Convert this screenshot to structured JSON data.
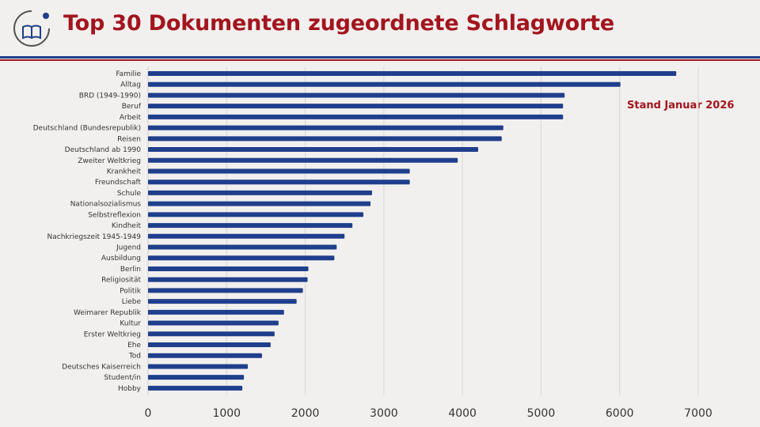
{
  "header": {
    "title": "Top 30 Dokumenten zugeordnete Schlagworte",
    "logo_icon": "book-circle-icon",
    "accent_red": "#a3151e",
    "accent_blue": "#1f3f8c"
  },
  "chart_data": {
    "type": "bar",
    "orientation": "horizontal",
    "title": "Top 30 Dokumenten zugeordnete Schlagworte",
    "annotation": "Stand Januar 2026",
    "xlabel": "",
    "ylabel": "",
    "xlim": [
      0,
      7000
    ],
    "xticks": [
      0,
      1000,
      2000,
      3000,
      4000,
      5000,
      6000,
      7000
    ],
    "grid": true,
    "bar_color": "#1f3f8c",
    "categories": [
      "Familie",
      "Alltag",
      "BRD (1949-1990)",
      "Beruf",
      "Arbeit",
      "Deutschland (Bundesrepublik)",
      "Reisen",
      "Deutschland ab 1990",
      "Zweiter Weltkrieg",
      "Krankheit",
      "Freundschaft",
      "Schule",
      "Nationalsozialismus",
      "Selbstreflexion",
      "Kindheit",
      "Nachkriegszeit 1945-1949",
      "Jugend",
      "Ausbildung",
      "Berlin",
      "Religiosität",
      "Politik",
      "Liebe",
      "Weimarer Republik",
      "Kultur",
      "Erster Weltkrieg",
      "Ehe",
      "Tod",
      "Deutsches Kaiserreich",
      "Student/in",
      "Hobby"
    ],
    "values": [
      6720,
      6010,
      5300,
      5280,
      5280,
      4520,
      4500,
      4200,
      3940,
      3330,
      3330,
      2850,
      2830,
      2740,
      2600,
      2500,
      2400,
      2370,
      2040,
      2030,
      1970,
      1890,
      1730,
      1660,
      1610,
      1560,
      1450,
      1270,
      1220,
      1200
    ]
  }
}
